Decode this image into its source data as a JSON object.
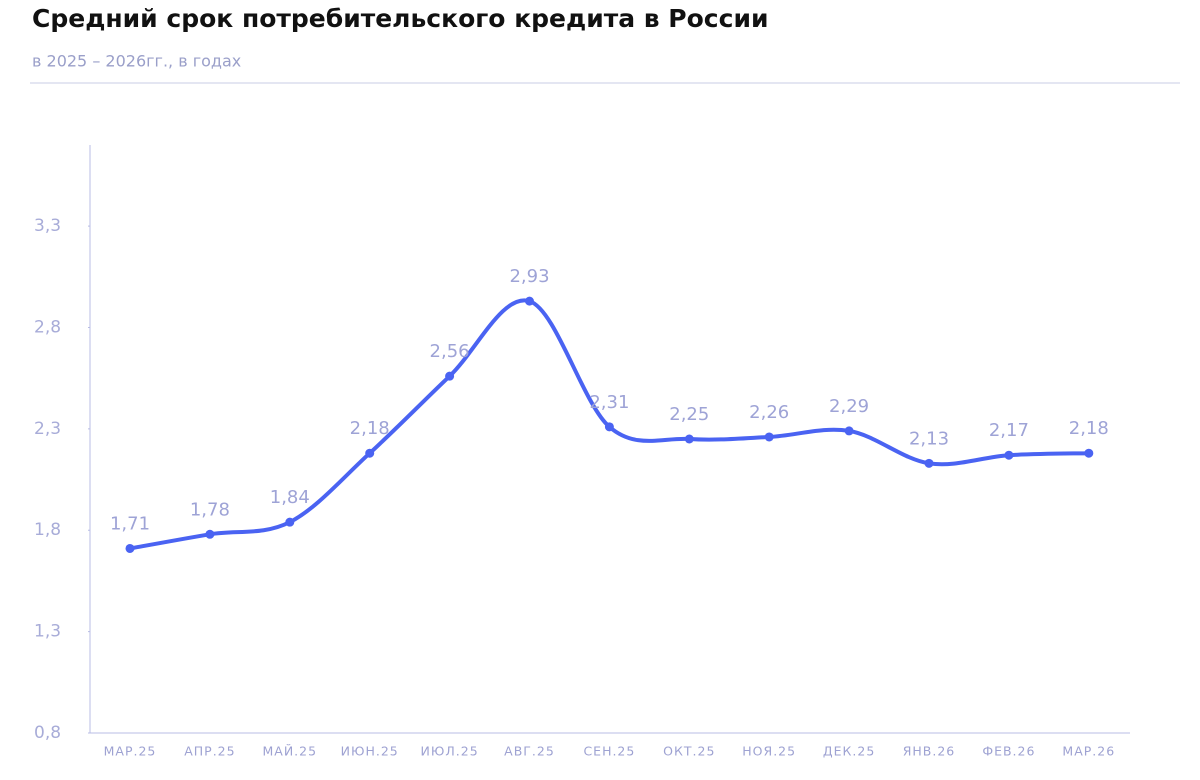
{
  "chart_data": {
    "type": "line",
    "title": "Средний срок потребительского кредита в России",
    "subtitle": "в 2025 – 2026гг., в годах",
    "categories": [
      "МАР.25",
      "АПР.25",
      "МАЙ.25",
      "ИЮН.25",
      "ИЮЛ.25",
      "АВГ.25",
      "СЕН.25",
      "ОКТ.25",
      "НОЯ.25",
      "ДЕК.25",
      "ЯНВ.26",
      "ФЕВ.26",
      "МАР.26"
    ],
    "values": [
      1.71,
      1.78,
      1.84,
      2.18,
      2.56,
      2.93,
      2.31,
      2.25,
      2.26,
      2.29,
      2.13,
      2.17,
      2.18
    ],
    "value_labels": [
      "1,71",
      "1,78",
      "1,84",
      "2,18",
      "2,56",
      "2,93",
      "2,31",
      "2,25",
      "2,26",
      "2,29",
      "2,13",
      "2,17",
      "2,18"
    ],
    "color": "#4a63f2",
    "ylim": [
      0.8,
      3.7
    ],
    "yticks": [
      {
        "value": 0.8,
        "label": "0,8"
      },
      {
        "value": 1.3,
        "label": "1,3"
      },
      {
        "value": 1.8,
        "label": "1,8"
      },
      {
        "value": 2.3,
        "label": "2,3"
      },
      {
        "value": 2.8,
        "label": "2,8"
      },
      {
        "value": 3.3,
        "label": "3,3"
      }
    ],
    "grid": false
  }
}
